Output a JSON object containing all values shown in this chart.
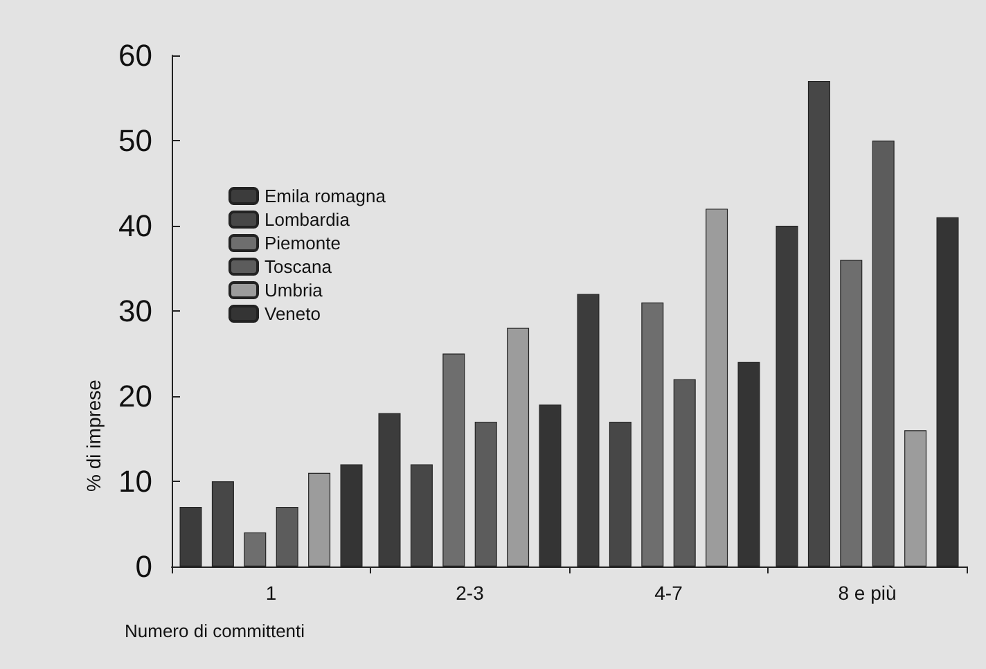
{
  "chart_data": {
    "type": "bar",
    "xlabel": "Numero di committenti",
    "ylabel": "% di imprese",
    "categories": [
      "1",
      "2-3",
      "4-7",
      "8 e più"
    ],
    "series": [
      {
        "name": "Emila romagna",
        "color": "#3c3c3c",
        "values": [
          7,
          18,
          32,
          40
        ]
      },
      {
        "name": "Lombardia",
        "color": "#474747",
        "values": [
          10,
          12,
          17,
          57
        ]
      },
      {
        "name": "Piemonte",
        "color": "#6e6e6e",
        "values": [
          4,
          25,
          31,
          36
        ]
      },
      {
        "name": "Toscana",
        "color": "#5c5c5c",
        "values": [
          7,
          17,
          22,
          50
        ]
      },
      {
        "name": "Umbria",
        "color": "#9c9c9c",
        "values": [
          11,
          28,
          42,
          16
        ]
      },
      {
        "name": "Veneto",
        "color": "#343434",
        "values": [
          12,
          19,
          24,
          41
        ]
      }
    ],
    "ylim": [
      0,
      60
    ],
    "yticks": [
      0,
      10,
      20,
      30,
      40,
      50,
      60
    ],
    "grid": false,
    "legend": "top left"
  }
}
